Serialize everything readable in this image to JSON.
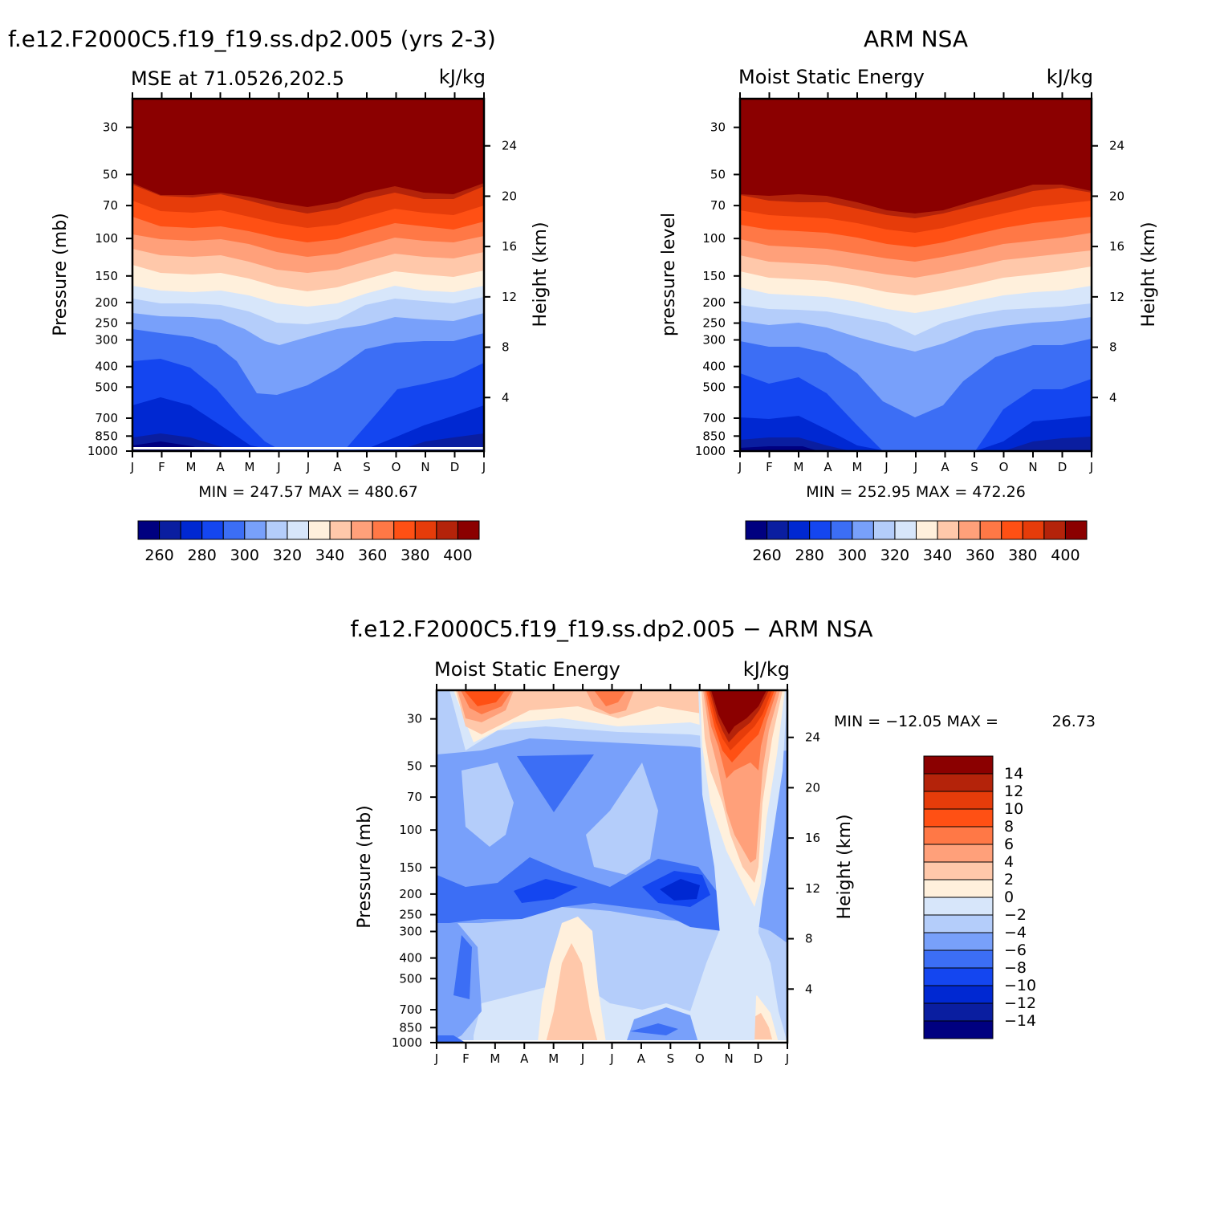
{
  "colors": {
    "levels_blue_to_red": [
      "#000080",
      "#0a1ea0",
      "#0028d2",
      "#1446f0",
      "#3c6ef5",
      "#78a0fa",
      "#b4cdfa",
      "#d7e6fa",
      "#fff0dc",
      "#ffc8aa",
      "#ffa07a",
      "#ff7846",
      "#ff5014",
      "#e63c0a",
      "#b4230a",
      "#8b0000"
    ],
    "diff_levels": [
      "#000080",
      "#0a1ea0",
      "#0028d2",
      "#1446f0",
      "#3c6ef5",
      "#78a0fa",
      "#b4cdfa",
      "#d7e6fa",
      "#fff0dc",
      "#ffc8aa",
      "#ffa07a",
      "#ff7846",
      "#ff5014",
      "#e63c0a",
      "#b4230a",
      "#8b0000"
    ]
  },
  "chart_data": [
    {
      "type": "heatmap",
      "title": "f.e12.F2000C5.f19_f19.ss.dp2.005 (yrs 2-3)",
      "subtitle_left": "MSE at 71.0526,202.5",
      "units": "kJ/kg",
      "ylabel": "Pressure (mb)",
      "y2label": "Height (km)",
      "x_ticks": [
        "J",
        "F",
        "M",
        "A",
        "M",
        "J",
        "J",
        "A",
        "S",
        "O",
        "N",
        "D",
        "J"
      ],
      "y_ticks": [
        "30",
        "50",
        "70",
        "100",
        "150",
        "200",
        "250",
        "300",
        "400",
        "500",
        "700",
        "850",
        "1000"
      ],
      "y2_ticks": [
        "24",
        "20",
        "16",
        "12",
        "8",
        "4"
      ],
      "min_max": "MIN = 247.57 MAX = 480.67",
      "colorbar_labels": [
        "260",
        "280",
        "300",
        "320",
        "340",
        "360",
        "380",
        "400"
      ]
    },
    {
      "type": "heatmap",
      "title": "ARM NSA",
      "subtitle_left": "Moist Static Energy",
      "units": "kJ/kg",
      "ylabel": "pressure level",
      "y2label": "Height (km)",
      "x_ticks": [
        "J",
        "F",
        "M",
        "A",
        "M",
        "J",
        "J",
        "A",
        "S",
        "O",
        "N",
        "D",
        "J"
      ],
      "y_ticks": [
        "30",
        "50",
        "70",
        "100",
        "150",
        "200",
        "250",
        "300",
        "400",
        "500",
        "700",
        "850",
        "1000"
      ],
      "y2_ticks": [
        "24",
        "20",
        "16",
        "12",
        "8",
        "4"
      ],
      "min_max": "MIN = 252.95 MAX = 472.26",
      "colorbar_labels": [
        "260",
        "280",
        "300",
        "320",
        "340",
        "360",
        "380",
        "400"
      ]
    },
    {
      "type": "heatmap",
      "title": "f.e12.F2000C5.f19_f19.ss.dp2.005 − ARM NSA",
      "subtitle_left": "Moist Static Energy",
      "units": "kJ/kg",
      "ylabel": "Pressure (mb)",
      "y2label": "Height (km)",
      "x_ticks": [
        "J",
        "F",
        "M",
        "A",
        "M",
        "J",
        "J",
        "A",
        "S",
        "O",
        "N",
        "D",
        "J"
      ],
      "y_ticks": [
        "30",
        "50",
        "70",
        "100",
        "150",
        "200",
        "250",
        "300",
        "400",
        "500",
        "700",
        "850",
        "1000"
      ],
      "y2_ticks": [
        "24",
        "20",
        "16",
        "12",
        "8",
        "4"
      ],
      "min_max_label": "MIN = −12.05 MAX =",
      "min_max_value": "26.73",
      "colorbar_labels": [
        "14",
        "12",
        "10",
        "8",
        "6",
        "4",
        "2",
        "0",
        "−2",
        "−4",
        "−6",
        "−8",
        "−10",
        "−12",
        "−14"
      ]
    }
  ]
}
